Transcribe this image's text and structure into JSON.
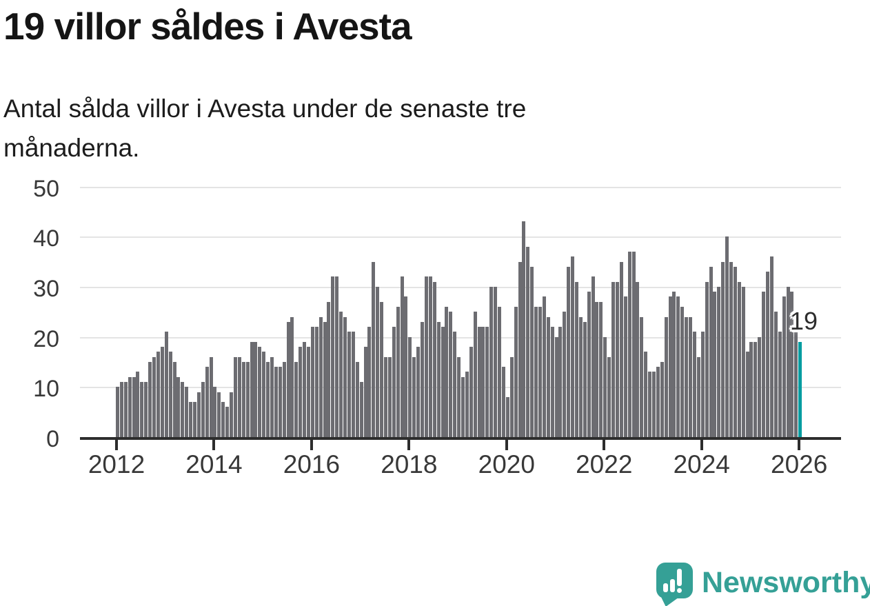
{
  "header": {
    "title": "19 villor såldes i Avesta",
    "subtitle_line1": "Antal sålda villor i Avesta under de senaste tre",
    "subtitle_line2": "månaderna."
  },
  "chart_data": {
    "type": "bar",
    "title": "19 villor såldes i Avesta",
    "x_monthly_start": "2012-01",
    "x_monthly_end": "2026-01",
    "values": [
      10,
      11,
      11,
      12,
      12,
      13,
      11,
      11,
      15,
      16,
      17,
      18,
      21,
      17,
      15,
      12,
      11,
      10,
      7,
      7,
      9,
      11,
      14,
      16,
      10,
      9,
      7,
      6,
      9,
      16,
      16,
      15,
      15,
      19,
      19,
      18,
      17,
      15,
      16,
      14,
      14,
      15,
      23,
      24,
      15,
      18,
      19,
      18,
      22,
      22,
      24,
      23,
      27,
      32,
      32,
      25,
      24,
      21,
      21,
      15,
      11,
      18,
      22,
      35,
      30,
      27,
      16,
      16,
      22,
      26,
      32,
      28,
      20,
      16,
      18,
      23,
      32,
      32,
      31,
      23,
      22,
      26,
      25,
      21,
      16,
      12,
      13,
      18,
      25,
      22,
      22,
      22,
      30,
      30,
      26,
      14,
      8,
      16,
      26,
      35,
      43,
      38,
      34,
      26,
      26,
      28,
      24,
      22,
      20,
      22,
      25,
      34,
      36,
      31,
      24,
      23,
      29,
      32,
      27,
      27,
      20,
      16,
      31,
      31,
      35,
      28,
      37,
      37,
      31,
      24,
      17,
      13,
      13,
      14,
      15,
      24,
      28,
      29,
      28,
      26,
      24,
      24,
      21,
      16,
      21,
      31,
      34,
      29,
      30,
      35,
      40,
      35,
      34,
      31,
      30,
      17,
      19,
      19,
      20,
      29,
      33,
      36,
      25,
      21,
      28,
      30,
      29,
      21,
      19
    ],
    "highlight_last": true,
    "last_value_label": "19",
    "yticks": [
      0,
      10,
      20,
      30,
      40,
      50
    ],
    "ylim": [
      0,
      50
    ],
    "xtick_labels": [
      "2012",
      "2014",
      "2016",
      "2018",
      "2020",
      "2022",
      "2024",
      "2026"
    ],
    "grid": "horizontal",
    "legend": "none",
    "bar_color": "#6c6c71",
    "highlight_color": "#009ca0"
  },
  "footer": {
    "brand": "Newsworthy"
  }
}
